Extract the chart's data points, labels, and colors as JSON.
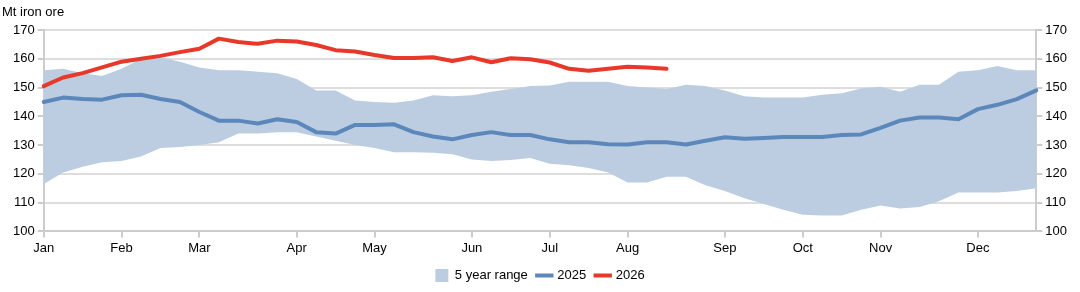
{
  "chart_data": {
    "type": "line",
    "ylabel": "Mt iron ore",
    "categories": [
      "Jan",
      null,
      null,
      null,
      "Feb",
      null,
      null,
      null,
      "Mar",
      null,
      null,
      null,
      null,
      "Apr",
      null,
      null,
      null,
      "May",
      null,
      null,
      null,
      null,
      "Jun",
      null,
      null,
      null,
      "Jul",
      null,
      null,
      null,
      "Aug",
      null,
      null,
      null,
      null,
      "Sep",
      null,
      null,
      null,
      "Oct",
      null,
      null,
      null,
      "Nov",
      null,
      null,
      null,
      null,
      "Dec",
      null,
      null,
      null
    ],
    "ylim": [
      100,
      170
    ],
    "yticks": [
      100,
      110,
      120,
      130,
      140,
      150,
      160,
      170
    ],
    "y2lim": [
      100,
      170
    ],
    "y2ticks": [
      100,
      110,
      120,
      130,
      140,
      150,
      160,
      170
    ],
    "grid": "y",
    "legend": "bottom",
    "marker": "none",
    "series": [
      {
        "name": "5 year range",
        "type": "line",
        "color": "#bccde2",
        "values": [
          null,
          null,
          null,
          null,
          null,
          null,
          null,
          null,
          null,
          null,
          null,
          null,
          null,
          null,
          null,
          null,
          null,
          null,
          null,
          null,
          null,
          null,
          null,
          null,
          null,
          null,
          null,
          null,
          null,
          null,
          null,
          null,
          null,
          null,
          null,
          null,
          null,
          null,
          null,
          null,
          null,
          null,
          null,
          null,
          null,
          null,
          null,
          null,
          null,
          null,
          null,
          null
        ],
        "lower": [
          116.5,
          120.5,
          122.5,
          124,
          124.5,
          126,
          129,
          129.3,
          130,
          131,
          134,
          134,
          134.5,
          134.5,
          133,
          131.5,
          130,
          129,
          127.5,
          127.5,
          127.3,
          126.8,
          125,
          124.5,
          124.8,
          125.5,
          123.5,
          123,
          122,
          120.5,
          117,
          117,
          119,
          119,
          116,
          114,
          111.5,
          109.5,
          107.5,
          105.8,
          105.5,
          105.5,
          107.5,
          109,
          108,
          108.5,
          110.5,
          113.5,
          113.5,
          113.5,
          114,
          115
        ],
        "upper": [
          156,
          156.5,
          155,
          154,
          156.5,
          160,
          160.5,
          159,
          157,
          156,
          156,
          155.5,
          155,
          153,
          149,
          149,
          145.5,
          145,
          144.7,
          145.5,
          147.3,
          147,
          147.3,
          148.5,
          149.5,
          150.5,
          150.7,
          152,
          152,
          152,
          150.5,
          150,
          149.5,
          151,
          150.5,
          149,
          147,
          146.5,
          146.5,
          146.5,
          147.5,
          148,
          149.7,
          150.3,
          148.5,
          151,
          151,
          155.5,
          156,
          157.5,
          156,
          156
        ]
      },
      {
        "name": "2025",
        "color": "#5b87bb",
        "values": [
          145,
          146.5,
          146,
          145.8,
          147.3,
          147.5,
          146,
          145,
          141.5,
          138.5,
          138.5,
          137.5,
          139,
          138,
          134.5,
          134,
          137,
          137,
          137.2,
          134.5,
          133,
          132,
          133.5,
          134.5,
          133.5,
          133.5,
          132,
          131,
          131,
          130.3,
          130.2,
          131,
          131,
          130.2,
          131.5,
          132.7,
          132.2,
          132.5,
          132.8,
          132.8,
          132.8,
          133.5,
          133.7,
          136,
          138.5,
          139.6,
          139.6,
          139,
          142.5,
          144,
          146,
          149
        ]
      },
      {
        "name": "2026",
        "color": "#e8382a",
        "values": [
          150.5,
          153.5,
          155,
          157,
          159,
          160,
          161,
          162.3,
          163.5,
          167,
          165.8,
          165.2,
          166.3,
          166,
          164.8,
          163,
          162.5,
          161.3,
          160.3,
          160.3,
          160.5,
          159.2,
          160.5,
          158.8,
          160.2,
          159.8,
          158.7,
          156.5,
          155.8,
          156.5,
          157.2,
          157,
          156.5,
          null,
          null,
          null,
          null,
          null,
          null,
          null,
          null,
          null,
          null,
          null,
          null,
          null,
          null,
          null,
          null,
          null,
          null,
          null
        ]
      }
    ]
  }
}
